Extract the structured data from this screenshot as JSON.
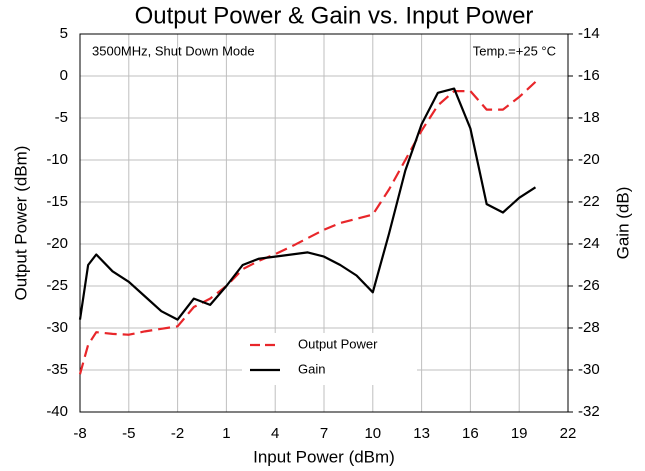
{
  "chart_data": {
    "type": "line",
    "title": "Output Power & Gain vs. Input Power",
    "x_label": "Input Power (dBm)",
    "y_label": "Output Power (dBm)",
    "y2_label": "Gain (dB)",
    "annotations": [
      "3500MHz, Shut Down Mode",
      "Temp.=+25 °C"
    ],
    "x": [
      -8,
      -7.5,
      -7,
      -6,
      -5,
      -4,
      -3,
      -2,
      -1,
      0,
      1,
      2,
      3,
      4,
      5,
      6,
      7,
      8,
      9,
      10,
      11,
      12,
      13,
      14,
      15,
      16,
      17,
      18,
      19,
      20
    ],
    "series": [
      {
        "name": "Output Power",
        "color": "#e8262a",
        "dash": true,
        "values": [
          -35.5,
          -32,
          -30.5,
          -30.7,
          -30.8,
          -30.4,
          -30.1,
          -29.8,
          -27.5,
          -26.5,
          -25,
          -23,
          -22,
          -21.2,
          -20.3,
          -19.3,
          -18.3,
          -17.5,
          -17,
          -16.5,
          -13.5,
          -10,
          -6.5,
          -3.5,
          -1.8,
          -1.8,
          -4,
          -4,
          -2.5,
          -0.7
        ]
      },
      {
        "name": "Gain",
        "color": "#000000",
        "axis": "y2",
        "values": [
          -27.6,
          -25,
          -24.5,
          -25.3,
          -25.8,
          -26.5,
          -27.2,
          -27.6,
          -26.6,
          -26.9,
          -26,
          -25,
          -24.7,
          -24.6,
          -24.5,
          -24.4,
          -24.6,
          -25,
          -25.5,
          -26.3,
          -23.5,
          -20.5,
          -18.3,
          -16.8,
          -16.6,
          -18.5,
          -22.1,
          -22.5,
          -21.8,
          -21.3
        ]
      }
    ],
    "xlim": [
      -8,
      22
    ],
    "xticks": [
      -8,
      -5,
      -2,
      1,
      4,
      7,
      10,
      13,
      16,
      19,
      22
    ],
    "ylim": [
      -40,
      5
    ],
    "yticks": [
      5,
      0,
      -5,
      -10,
      -15,
      -20,
      -25,
      -30,
      -35,
      -40
    ],
    "y2lim": [
      -32,
      -14
    ],
    "y2ticks": [
      -14,
      -16,
      -18,
      -20,
      -22,
      -24,
      -26,
      -28,
      -30,
      -32
    ],
    "grid": true,
    "legend": "lower center"
  }
}
